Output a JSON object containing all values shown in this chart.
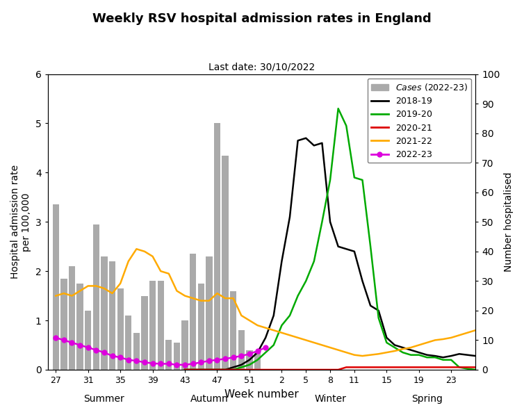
{
  "title": "Weekly RSV hospital admission rates in England",
  "subtitle": "Last date: 30/10/2022",
  "xlabel": "Week number",
  "ylabel_left": "Hospital admission rate\nper 100,000",
  "ylabel_right": "Number hospitalised",
  "ylim_left": [
    0,
    6
  ],
  "ylim_right": [
    0,
    100
  ],
  "yticks_left": [
    0,
    1,
    2,
    3,
    4,
    5,
    6
  ],
  "yticks_right": [
    0,
    10,
    20,
    30,
    40,
    50,
    60,
    70,
    80,
    90,
    100
  ],
  "season_labels": [
    "Summer",
    "Autumn",
    "Winter",
    "Spring"
  ],
  "x_tick_labels": [
    "27",
    "31",
    "35",
    "39",
    "43",
    "47",
    "51",
    "2",
    "5",
    "8",
    "11",
    "15",
    "19",
    "23"
  ],
  "x_tick_positions": [
    0,
    4,
    8,
    12,
    16,
    20,
    24,
    28,
    31,
    34,
    37,
    41,
    45,
    49
  ],
  "bar_x": [
    0,
    1,
    2,
    3,
    4,
    5,
    6,
    7,
    8,
    9,
    10,
    11,
    12,
    13,
    14,
    15,
    16,
    17,
    18,
    19,
    20,
    21,
    22,
    23,
    24,
    25,
    26
  ],
  "bar_heights": [
    3.35,
    1.85,
    2.1,
    1.75,
    1.2,
    2.95,
    2.3,
    2.2,
    1.65,
    1.1,
    0.75,
    1.5,
    1.8,
    1.8,
    0.6,
    0.55,
    1.0,
    2.35,
    1.75,
    2.3,
    5.0,
    4.35,
    1.6,
    0.8,
    0.4,
    0.35,
    0.0
  ],
  "bar_color": "#aaaaaa",
  "line_2018_x": [
    16,
    17,
    18,
    19,
    20,
    21,
    22,
    23,
    24,
    25,
    26,
    27,
    28,
    29,
    30,
    31,
    32,
    33,
    34,
    35,
    36,
    37,
    38,
    39,
    40,
    41,
    42,
    43,
    44,
    45,
    46,
    47,
    48,
    49,
    50,
    51,
    52
  ],
  "line_2018_y": [
    0.0,
    0.0,
    0.0,
    0.0,
    0.0,
    0.0,
    0.05,
    0.1,
    0.2,
    0.35,
    0.65,
    1.1,
    2.2,
    3.1,
    4.65,
    4.7,
    4.55,
    4.6,
    3.0,
    2.5,
    2.45,
    2.4,
    1.8,
    1.3,
    1.2,
    0.65,
    0.5,
    0.45,
    0.4,
    0.35,
    0.3,
    0.28,
    0.25,
    0.28,
    0.32,
    0.3,
    0.28
  ],
  "line_2018_color": "#000000",
  "line_2019_x": [
    16,
    17,
    18,
    19,
    20,
    21,
    22,
    23,
    24,
    25,
    26,
    27,
    28,
    29,
    30,
    31,
    32,
    33,
    34,
    35,
    36,
    37,
    38,
    39,
    40,
    41,
    42,
    43,
    44,
    45,
    46,
    47,
    48,
    49,
    50,
    51,
    52
  ],
  "line_2019_y": [
    0.0,
    0.0,
    0.0,
    0.0,
    0.0,
    0.0,
    0.0,
    0.05,
    0.1,
    0.2,
    0.35,
    0.5,
    0.9,
    1.1,
    1.5,
    1.8,
    2.2,
    3.0,
    3.85,
    5.3,
    4.95,
    3.9,
    3.85,
    2.5,
    1.05,
    0.55,
    0.45,
    0.35,
    0.3,
    0.3,
    0.25,
    0.25,
    0.2,
    0.2,
    0.05,
    0.02,
    0.0
  ],
  "line_2019_color": "#00aa00",
  "line_2020_x": [
    16,
    17,
    18,
    19,
    20,
    21,
    22,
    23,
    24,
    25,
    26,
    27,
    28,
    29,
    30,
    31,
    32,
    33,
    34,
    35,
    36,
    37,
    38,
    39,
    40,
    41,
    42,
    43,
    44,
    45,
    46,
    47,
    48,
    49,
    50,
    51,
    52
  ],
  "line_2020_y": [
    0.0,
    0.0,
    0.0,
    0.0,
    0.0,
    0.0,
    0.0,
    0.0,
    0.0,
    0.0,
    0.0,
    0.0,
    0.0,
    0.0,
    0.0,
    0.0,
    0.0,
    0.0,
    0.0,
    0.0,
    0.05,
    0.05,
    0.05,
    0.05,
    0.05,
    0.05,
    0.05,
    0.05,
    0.05,
    0.05,
    0.05,
    0.05,
    0.05,
    0.05,
    0.05,
    0.05,
    0.05
  ],
  "line_2020_color": "#dd0000",
  "line_2021_x": [
    0,
    1,
    2,
    3,
    4,
    5,
    6,
    7,
    8,
    9,
    10,
    11,
    12,
    13,
    14,
    15,
    16,
    17,
    18,
    19,
    20,
    21,
    22,
    23,
    24,
    25,
    26,
    27,
    28,
    29,
    30,
    31,
    32,
    33,
    34,
    35,
    36,
    37,
    38,
    39,
    40,
    41,
    42,
    43,
    44,
    45,
    46,
    47,
    48,
    49,
    50,
    51,
    52
  ],
  "line_2021_y": [
    1.5,
    1.55,
    1.5,
    1.6,
    1.7,
    1.7,
    1.65,
    1.55,
    1.75,
    2.2,
    2.45,
    2.4,
    2.3,
    2.0,
    1.95,
    1.6,
    1.5,
    1.45,
    1.4,
    1.4,
    1.55,
    1.45,
    1.45,
    1.1,
    1.0,
    0.9,
    0.85,
    0.8,
    0.75,
    0.7,
    0.65,
    0.6,
    0.55,
    0.5,
    0.45,
    0.4,
    0.35,
    0.3,
    0.28,
    0.3,
    0.32,
    0.35,
    0.38,
    0.42,
    0.45,
    0.5,
    0.55,
    0.6,
    0.62,
    0.65,
    0.7,
    0.75,
    0.8
  ],
  "line_2021_color": "#ffaa00",
  "line_2022_x": [
    0,
    1,
    2,
    3,
    4,
    5,
    6,
    7,
    8,
    9,
    10,
    11,
    12,
    13,
    14,
    15,
    16,
    17,
    18,
    19,
    20,
    21,
    22,
    23,
    24,
    25,
    26
  ],
  "line_2022_y": [
    0.65,
    0.6,
    0.55,
    0.5,
    0.45,
    0.4,
    0.35,
    0.28,
    0.25,
    0.2,
    0.18,
    0.15,
    0.13,
    0.12,
    0.12,
    0.1,
    0.1,
    0.12,
    0.15,
    0.18,
    0.2,
    0.22,
    0.25,
    0.28,
    0.32,
    0.38,
    0.45
  ],
  "line_2022_color": "#dd00dd",
  "legend_labels": [
    "Cases (2022-23)",
    "2018-19",
    "2019-20",
    "2020-21",
    "2021-22",
    "2022-23"
  ],
  "background_color": "#ffffff"
}
